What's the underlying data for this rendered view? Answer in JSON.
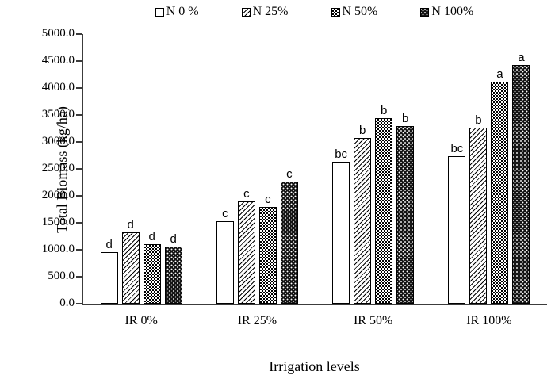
{
  "chart_data": {
    "type": "bar",
    "title": "",
    "xlabel": "Irrigation levels",
    "ylabel": "Total Biomass (kg/ha)",
    "ylim": [
      0,
      5000
    ],
    "ytick_step": 500,
    "ytick_labels": [
      "0.0",
      "500.0",
      "1000.0",
      "1500.0",
      "2000.0",
      "2500.0",
      "3000.0",
      "3500.0",
      "4000.0",
      "4500.0",
      "5000.0"
    ],
    "grid": "off",
    "legend_position": "top",
    "categories": [
      "IR 0%",
      "IR 25%",
      "IR 50%",
      "IR 100%"
    ],
    "series": [
      {
        "name": "N 0 %",
        "pattern": "plain-white",
        "values": [
          950,
          1530,
          2630,
          2740
        ],
        "letters": [
          "d",
          "c",
          "bc",
          "bc"
        ]
      },
      {
        "name": "N 25%",
        "pattern": "diagonal-hatch",
        "values": [
          1320,
          1900,
          3080,
          3260
        ],
        "letters": [
          "d",
          "c",
          "b",
          "b"
        ]
      },
      {
        "name": "N 50%",
        "pattern": "checkerboard",
        "values": [
          1110,
          1790,
          3440,
          4120
        ],
        "letters": [
          "d",
          "c",
          "b",
          "a"
        ]
      },
      {
        "name": "N 100%",
        "pattern": "white-dots-on-black",
        "values": [
          1060,
          2260,
          3300,
          4420
        ],
        "letters": [
          "d",
          "c",
          "b",
          "a"
        ]
      }
    ],
    "colors": {
      "foreground": "#000000",
      "background": "#ffffff",
      "axis": "#3c3c3c"
    }
  }
}
